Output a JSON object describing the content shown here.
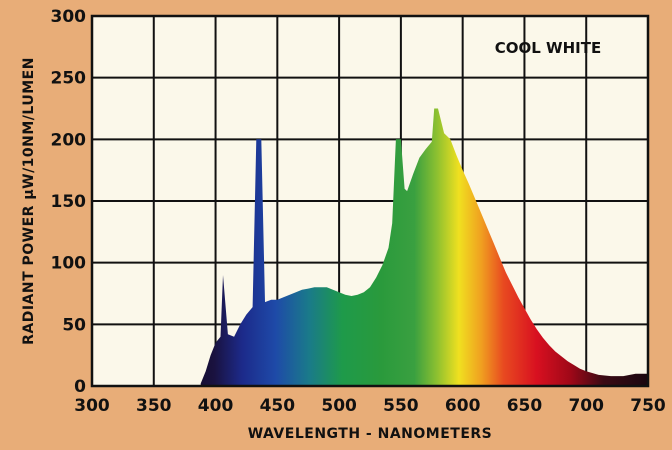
{
  "chart_data": {
    "type": "area",
    "ylabel": "RADIANT POWER µW/10NM/LUMEN",
    "xlabel": "WAVELENGTH - NANOMETERS",
    "xlim": [
      300,
      750
    ],
    "ylim": [
      0,
      300
    ],
    "x_ticks": [
      300,
      350,
      400,
      450,
      500,
      550,
      600,
      650,
      700,
      750
    ],
    "y_ticks": [
      0,
      50,
      100,
      150,
      200,
      250,
      300
    ],
    "grid": true,
    "series": [
      {
        "name": "COOL WHITE",
        "x": [
          388,
          392,
          396,
          400,
          404,
          406,
          410,
          415,
          420,
          425,
          430,
          433,
          437,
          440,
          445,
          450,
          455,
          460,
          465,
          470,
          475,
          480,
          485,
          490,
          495,
          500,
          505,
          510,
          515,
          520,
          525,
          530,
          535,
          540,
          543,
          546,
          550,
          553,
          555,
          560,
          565,
          570,
          575,
          577,
          580,
          585,
          590,
          595,
          600,
          605,
          610,
          615,
          620,
          625,
          630,
          635,
          640,
          645,
          650,
          655,
          660,
          665,
          670,
          675,
          680,
          685,
          690,
          695,
          700,
          710,
          720,
          730,
          740,
          750
        ],
        "values": [
          2,
          12,
          25,
          35,
          40,
          90,
          42,
          40,
          50,
          58,
          64,
          200,
          200,
          68,
          70,
          70,
          72,
          74,
          76,
          78,
          79,
          80,
          80,
          80,
          78,
          76,
          74,
          73,
          74,
          76,
          80,
          88,
          98,
          112,
          132,
          200,
          200,
          160,
          158,
          172,
          185,
          192,
          198,
          225,
          225,
          205,
          200,
          187,
          175,
          164,
          152,
          140,
          128,
          116,
          104,
          92,
          82,
          72,
          63,
          54,
          46,
          39,
          33,
          28,
          24,
          20,
          17,
          14,
          12,
          9,
          8,
          8,
          10,
          10
        ]
      }
    ]
  }
}
